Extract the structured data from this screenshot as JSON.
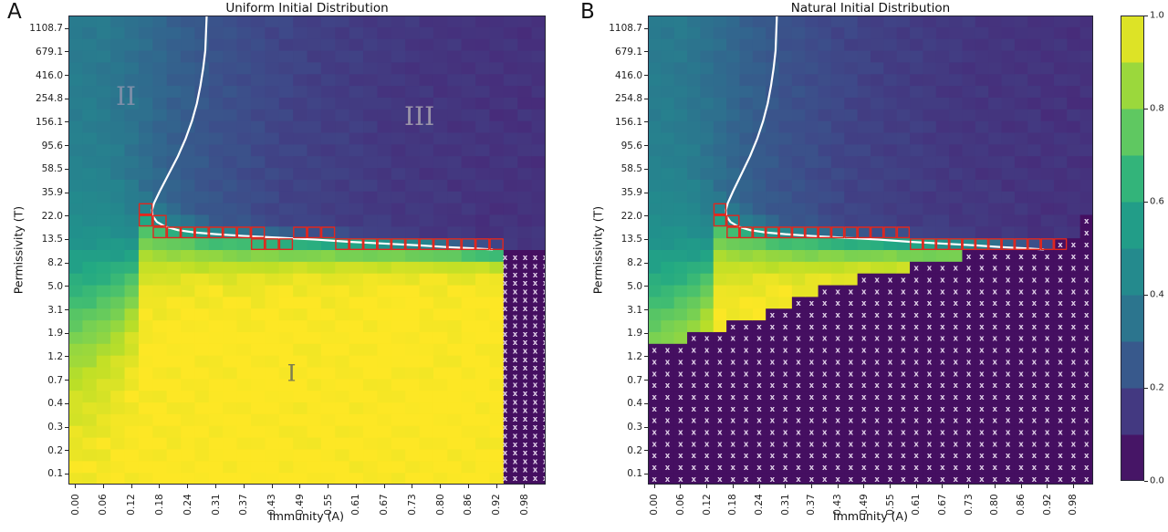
{
  "figure": {
    "xlabel": "Immunity (A)",
    "ylabel": "Permissivity (T)"
  },
  "chart_data": {
    "type": "heatmap",
    "grid": {
      "cols": 34,
      "rows": 40
    },
    "x_tick_labels": [
      "0.00",
      "0.06",
      "0.12",
      "0.18",
      "0.24",
      "0.31",
      "0.37",
      "0.43",
      "0.49",
      "0.55",
      "0.61",
      "0.67",
      "0.73",
      "0.80",
      "0.86",
      "0.92",
      "0.98"
    ],
    "y_tick_labels": [
      "1108.7",
      "679.1",
      "416.0",
      "254.8",
      "156.1",
      "95.6",
      "58.5",
      "35.9",
      "22.0",
      "13.5",
      "8.2",
      "5.0",
      "3.1",
      "1.9",
      "1.2",
      "0.7",
      "0.4",
      "0.3",
      "0.2",
      "0.1"
    ],
    "xlabel": "Immunity (A)",
    "ylabel": "Permissivity (T)",
    "value_range": [
      0.0,
      1.0
    ],
    "colormap": {
      "name": "viridis",
      "stops": [
        [
          0.0,
          "#440154"
        ],
        [
          0.1,
          "#482878"
        ],
        [
          0.2,
          "#3e4a89"
        ],
        [
          0.3,
          "#31688e"
        ],
        [
          0.4,
          "#26828e"
        ],
        [
          0.5,
          "#21918c"
        ],
        [
          0.6,
          "#22a884"
        ],
        [
          0.7,
          "#44bf70"
        ],
        [
          0.8,
          "#7ad151"
        ],
        [
          0.9,
          "#bddf26"
        ],
        [
          1.0,
          "#fde725"
        ]
      ]
    },
    "colorbar": {
      "segments": 10,
      "tick_labels": [
        "1.0",
        "0.8",
        "0.6",
        "0.4",
        "0.2",
        "0.0"
      ]
    },
    "overlay_colors": {
      "white_curve": "#ffffff",
      "red_box": "#e2261d",
      "hatch_x": "#e0cfe8"
    },
    "panels": [
      {
        "letter": "A",
        "title": "Uniform Initial Distribution",
        "region_labels": [
          {
            "text": "II",
            "col": 4.1,
            "row": 6.9,
            "color": "#7d8ea8",
            "size": 28
          },
          {
            "text": "III",
            "col": 25.0,
            "row": 8.6,
            "color": "#9993a8",
            "size": 28
          },
          {
            "text": "I",
            "col": 15.9,
            "row": 30.5,
            "color": "#7e7e50",
            "size": 25
          }
        ],
        "field": {
          "top": [
            0.37,
            0.365,
            0.36,
            0.35,
            0.335,
            0.315,
            0.295,
            0.275,
            0.26,
            0.245,
            0.23,
            0.22,
            0.21,
            0.2,
            0.19,
            0.183,
            0.177,
            0.172,
            0.167,
            0.162,
            0.158,
            0.154,
            0.15,
            0.147,
            0.144,
            0.141,
            0.139,
            0.137,
            0.135,
            0.133,
            0.131,
            0.13,
            0.129,
            0.128
          ],
          "boundary": [
            23.8,
            23.4,
            22.9,
            22.2,
            21.2,
            17.3,
            17.7,
            17.95,
            18.15,
            18.3,
            18.42,
            18.52,
            18.6,
            18.67,
            18.73,
            18.78,
            18.83,
            18.87,
            18.91,
            18.95,
            18.99,
            19.03,
            19.07,
            19.12,
            19.17,
            19.23,
            19.3,
            19.38,
            19.46,
            19.55,
            19.65,
            19.75,
            19.85,
            19.95
          ],
          "sharp": [
            4.2,
            4.0,
            3.7,
            3.3,
            2.8,
            1.9,
            1.7,
            1.55,
            1.45,
            1.35,
            1.28,
            1.22,
            1.17,
            1.12,
            1.08,
            1.04,
            1.0,
            0.97,
            0.94,
            0.91,
            0.88,
            0.86,
            0.84,
            0.82,
            0.8,
            0.78,
            0.76,
            0.74,
            0.72,
            0.7,
            0.68,
            0.66,
            0.64,
            0.62
          ],
          "up_factor": [
            1,
            1,
            1,
            0.95,
            0.8,
            0.42,
            0.4,
            0.38,
            0.37,
            0.36,
            0.35,
            0.35,
            0.35,
            0.35,
            0.35,
            0.35,
            0.35,
            0.35,
            0.35,
            0.35,
            0.35,
            0.35,
            0.35,
            0.35,
            0.35,
            0.35,
            0.35,
            0.35,
            0.35,
            0.35,
            0.35,
            0.35,
            0.35,
            0.35
          ],
          "bottom_value": 1.0
        },
        "hatch_start_row": [
          40,
          40,
          40,
          40,
          40,
          40,
          40,
          40,
          40,
          40,
          40,
          40,
          40,
          40,
          40,
          40,
          40,
          40,
          40,
          40,
          40,
          40,
          40,
          40,
          40,
          40,
          40,
          40,
          40,
          40,
          40,
          20,
          20,
          20
        ],
        "hatch_spacing": [
          11.0,
          9.3
        ],
        "red_cells": [
          [
            5,
            16
          ],
          [
            5,
            17
          ],
          [
            6,
            17
          ],
          [
            6,
            18
          ],
          [
            7,
            18
          ],
          [
            8,
            18
          ],
          [
            9,
            18
          ],
          [
            10,
            18
          ],
          [
            11,
            18
          ],
          [
            12,
            18
          ],
          [
            13,
            18
          ],
          [
            13,
            19
          ],
          [
            14,
            19
          ],
          [
            15,
            19
          ],
          [
            16,
            18
          ],
          [
            17,
            18
          ],
          [
            18,
            18
          ],
          [
            19,
            19
          ],
          [
            20,
            19
          ],
          [
            21,
            19
          ],
          [
            22,
            19
          ],
          [
            23,
            19
          ],
          [
            24,
            19
          ],
          [
            25,
            19
          ],
          [
            26,
            19
          ],
          [
            27,
            19
          ],
          [
            28,
            19
          ],
          [
            29,
            19
          ],
          [
            30,
            19
          ]
        ],
        "white_curve": [
          [
            9.85,
            0
          ],
          [
            9.8,
            1.5
          ],
          [
            9.75,
            3
          ],
          [
            9.6,
            4.5
          ],
          [
            9.4,
            6
          ],
          [
            9.15,
            7.5
          ],
          [
            8.8,
            9
          ],
          [
            8.35,
            10.5
          ],
          [
            7.8,
            12
          ],
          [
            7.15,
            13.5
          ],
          [
            6.5,
            15
          ],
          [
            6.1,
            16
          ],
          [
            5.95,
            16.6
          ],
          [
            6.0,
            17.1
          ],
          [
            6.3,
            17.6
          ],
          [
            6.9,
            18.0
          ],
          [
            7.8,
            18.3
          ],
          [
            9.0,
            18.5
          ],
          [
            10.5,
            18.65
          ],
          [
            12.5,
            18.8
          ],
          [
            15,
            18.95
          ],
          [
            17.5,
            19.1
          ],
          [
            20,
            19.3
          ],
          [
            22.5,
            19.45
          ],
          [
            25,
            19.6
          ],
          [
            27,
            19.75
          ],
          [
            28.8,
            19.85
          ],
          [
            30.2,
            19.95
          ]
        ]
      },
      {
        "letter": "B",
        "title": "Natural Initial Distribution",
        "region_labels": [],
        "field": {
          "top": [
            0.37,
            0.365,
            0.36,
            0.35,
            0.335,
            0.315,
            0.295,
            0.275,
            0.26,
            0.245,
            0.23,
            0.22,
            0.21,
            0.2,
            0.19,
            0.183,
            0.177,
            0.172,
            0.167,
            0.162,
            0.158,
            0.154,
            0.15,
            0.147,
            0.144,
            0.141,
            0.139,
            0.137,
            0.135,
            0.133,
            0.131,
            0.13,
            0.129,
            0.128
          ],
          "boundary": [
            23.8,
            23.4,
            22.9,
            22.2,
            21.2,
            17.3,
            17.7,
            17.95,
            18.15,
            18.3,
            18.42,
            18.52,
            18.6,
            18.67,
            18.73,
            18.78,
            18.83,
            18.87,
            18.91,
            18.95,
            18.99,
            19.03,
            19.07,
            19.12,
            19.17,
            19.23,
            19.3,
            19.38,
            19.46,
            19.55,
            19.65,
            19.75,
            19.85,
            19.95
          ],
          "sharp": [
            4.2,
            4.0,
            3.7,
            3.3,
            2.8,
            1.9,
            1.7,
            1.55,
            1.45,
            1.35,
            1.28,
            1.22,
            1.17,
            1.12,
            1.08,
            1.04,
            1.0,
            0.97,
            0.94,
            0.91,
            0.88,
            0.86,
            0.84,
            0.82,
            0.8,
            0.78,
            0.76,
            0.74,
            0.72,
            0.7,
            0.68,
            0.66,
            0.64,
            0.62
          ],
          "up_factor": [
            1,
            1,
            1,
            0.95,
            0.8,
            0.42,
            0.4,
            0.38,
            0.37,
            0.36,
            0.35,
            0.35,
            0.35,
            0.35,
            0.35,
            0.35,
            0.35,
            0.35,
            0.35,
            0.35,
            0.35,
            0.35,
            0.35,
            0.35,
            0.35,
            0.35,
            0.35,
            0.35,
            0.35,
            0.35,
            0.35,
            0.35,
            0.35,
            0.35
          ],
          "bottom_value": 1.0
        },
        "hatch_start_row": [
          28,
          28,
          28,
          27,
          27,
          27,
          26,
          26,
          26,
          25,
          25,
          24,
          24,
          23,
          23,
          23,
          22,
          22,
          22,
          22,
          21,
          21,
          21,
          21,
          20,
          20,
          20,
          20,
          20,
          20,
          20,
          19,
          19,
          17
        ],
        "hatch_spacing": [
          14.35,
          12.85
        ],
        "red_cells": [
          [
            5,
            16
          ],
          [
            5,
            17
          ],
          [
            6,
            17
          ],
          [
            6,
            18
          ],
          [
            7,
            18
          ],
          [
            8,
            18
          ],
          [
            9,
            18
          ],
          [
            10,
            18
          ],
          [
            11,
            18
          ],
          [
            12,
            18
          ],
          [
            13,
            18
          ],
          [
            14,
            18
          ],
          [
            15,
            18
          ],
          [
            16,
            18
          ],
          [
            17,
            18
          ],
          [
            18,
            18
          ],
          [
            19,
            18
          ],
          [
            20,
            19
          ],
          [
            21,
            19
          ],
          [
            22,
            19
          ],
          [
            23,
            19
          ],
          [
            24,
            19
          ],
          [
            25,
            19
          ],
          [
            26,
            19
          ],
          [
            27,
            19
          ],
          [
            28,
            19
          ],
          [
            29,
            19
          ],
          [
            30,
            19
          ],
          [
            31,
            19
          ]
        ],
        "white_curve": [
          [
            9.85,
            0
          ],
          [
            9.8,
            1.5
          ],
          [
            9.75,
            3
          ],
          [
            9.6,
            4.5
          ],
          [
            9.4,
            6
          ],
          [
            9.15,
            7.5
          ],
          [
            8.8,
            9
          ],
          [
            8.35,
            10.5
          ],
          [
            7.8,
            12
          ],
          [
            7.15,
            13.5
          ],
          [
            6.5,
            15
          ],
          [
            6.1,
            16
          ],
          [
            5.95,
            16.6
          ],
          [
            6.0,
            17.1
          ],
          [
            6.3,
            17.6
          ],
          [
            6.9,
            18.0
          ],
          [
            7.8,
            18.3
          ],
          [
            9.0,
            18.5
          ],
          [
            10.5,
            18.65
          ],
          [
            12.5,
            18.8
          ],
          [
            15,
            18.95
          ],
          [
            17.5,
            19.1
          ],
          [
            20,
            19.3
          ],
          [
            22.5,
            19.45
          ],
          [
            25,
            19.6
          ],
          [
            27,
            19.75
          ],
          [
            28.8,
            19.85
          ],
          [
            30.2,
            19.95
          ]
        ]
      }
    ]
  }
}
